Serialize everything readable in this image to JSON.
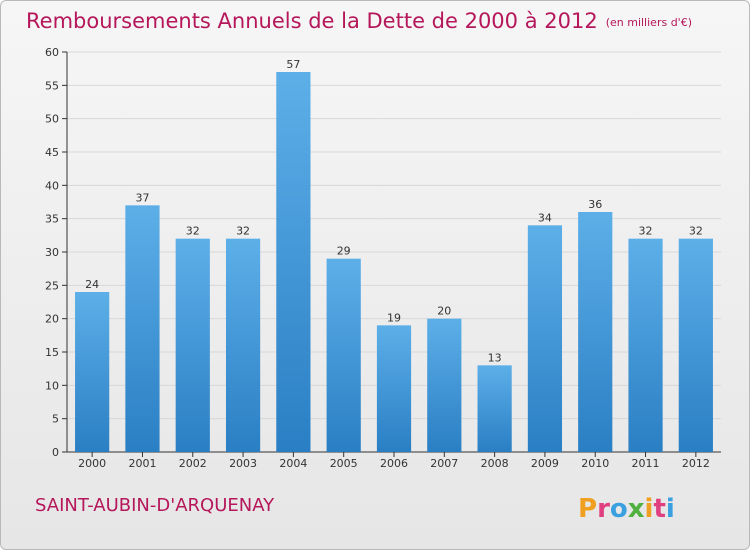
{
  "header": {
    "title": "Remboursements Annuels de la Dette de 2000 à 2012",
    "unit": "(en milliers d'€)"
  },
  "footer": {
    "town": "SAINT-AUBIN-D'ARQUENAY",
    "logo_text": "Proxiti"
  },
  "colors": {
    "title": "#b5175a",
    "bar_top": "#5dafe8",
    "bar_bottom": "#2a7fc4",
    "grid": "#d8d8d8",
    "axis": "#333333"
  },
  "chart_data": {
    "type": "bar",
    "categories": [
      "2000",
      "2001",
      "2002",
      "2003",
      "2004",
      "2005",
      "2006",
      "2007",
      "2008",
      "2009",
      "2010",
      "2011",
      "2012"
    ],
    "values": [
      24,
      37,
      32,
      32,
      57,
      29,
      19,
      20,
      13,
      34,
      36,
      32,
      32
    ],
    "data_labels": [
      "24",
      "37",
      "32",
      "32",
      "57",
      "29",
      "19",
      "20",
      "13",
      "34",
      "36",
      "32",
      "32"
    ],
    "ylim": [
      0,
      60
    ],
    "yticks": [
      0,
      5,
      10,
      15,
      20,
      25,
      30,
      35,
      40,
      45,
      50,
      55,
      60
    ],
    "title": "Remboursements Annuels de la Dette de 2000 à 2012",
    "xlabel": "",
    "ylabel": "",
    "grid": true,
    "legend": "none"
  }
}
